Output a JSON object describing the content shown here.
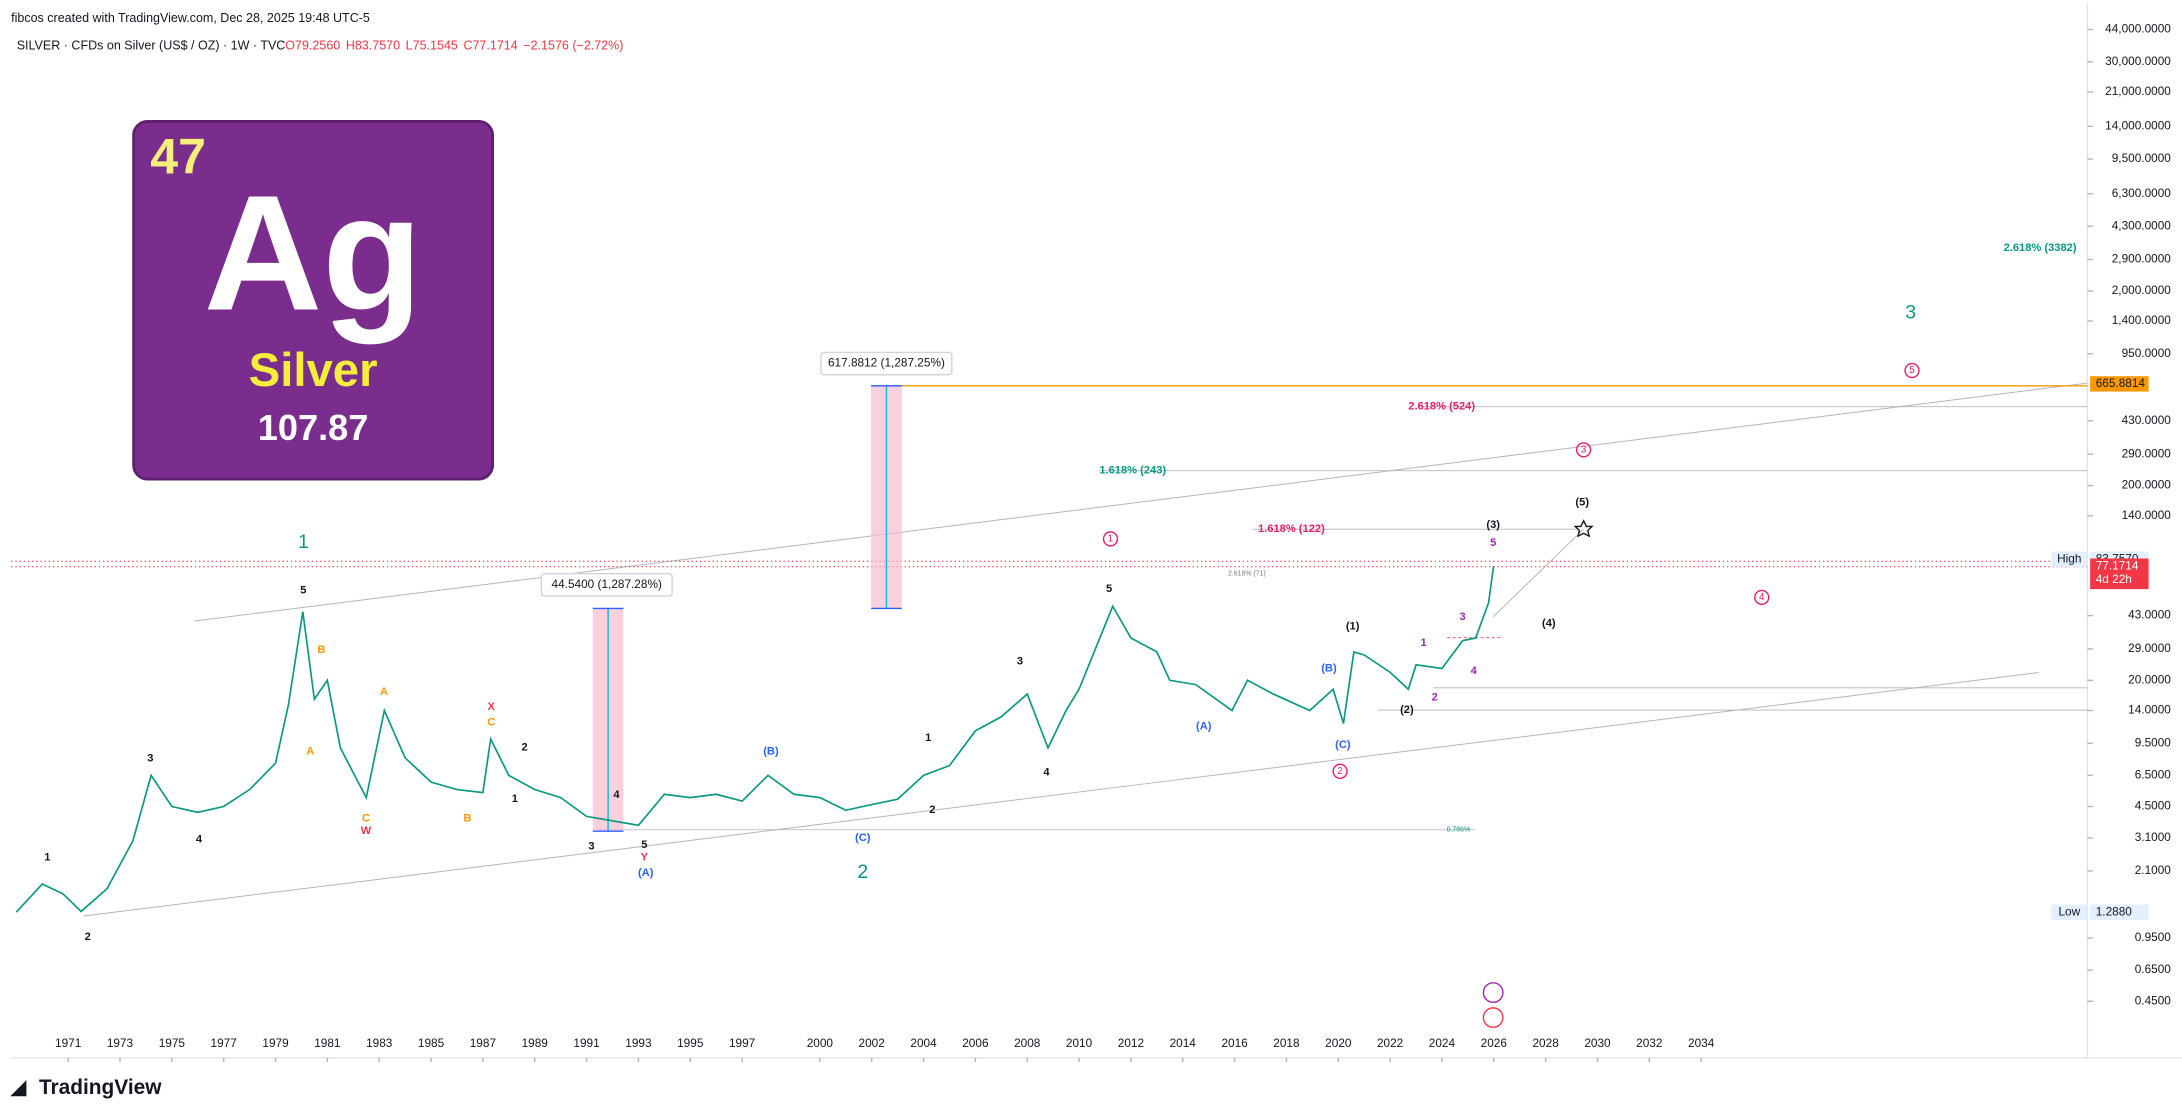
{
  "header": {
    "credit": "fibcos created with TradingView.com, Dec 28, 2025 19:48 UTC-5",
    "symbol": "SILVER · CFDs on Silver (US$ / OZ) · 1W · TVC",
    "ohlc": [
      "O79.2560",
      "H83.7570",
      "L75.1545",
      "C77.1714",
      "−2.1576 (−2.72%)"
    ]
  },
  "logo": {
    "number": "47",
    "symbol": "Ag",
    "name": "Silver",
    "mass": "107.87"
  },
  "footer": "TradingView",
  "chart_data": {
    "type": "line",
    "color": "#089981",
    "log_scale": true,
    "x": [
      1969.0,
      1970.0,
      1970.8,
      1971.5,
      1972.5,
      1973.5,
      1974.2,
      1975.0,
      1976.0,
      1977.0,
      1978.0,
      1979.0,
      1979.5,
      1980.05,
      1980.5,
      1981.0,
      1981.5,
      1982.5,
      1983.2,
      1984.0,
      1985.0,
      1986.0,
      1987.0,
      1987.3,
      1988.0,
      1989.0,
      1990.0,
      1991.0,
      1992.0,
      1993.0,
      1994.0,
      1995.0,
      1996.0,
      1997.0,
      1998.0,
      1999.0,
      2000.0,
      2001.0,
      2002.0,
      2003.0,
      2004.0,
      2005.0,
      2006.0,
      2007.0,
      2008.0,
      2008.8,
      2009.5,
      2010.0,
      2011.3,
      2012.0,
      2013.0,
      2013.5,
      2014.5,
      2015.9,
      2016.5,
      2017.5,
      2018.9,
      2019.8,
      2020.2,
      2020.6,
      2021.0,
      2022.0,
      2022.7,
      2023.0,
      2024.0,
      2024.8,
      2025.3,
      2025.8,
      2025.99
    ],
    "values": [
      1.29,
      1.8,
      1.6,
      1.3,
      1.7,
      3.0,
      6.5,
      4.5,
      4.2,
      4.5,
      5.5,
      7.5,
      15,
      45,
      16,
      20,
      9,
      5.0,
      14,
      8,
      6.0,
      5.5,
      5.3,
      10,
      6.5,
      5.5,
      5.0,
      4.0,
      3.8,
      3.6,
      5.2,
      5.0,
      5.2,
      4.8,
      6.5,
      5.2,
      5.0,
      4.3,
      4.6,
      4.9,
      6.5,
      7.3,
      11,
      13,
      17,
      9,
      14,
      18,
      48,
      33,
      28,
      20,
      19,
      14,
      20,
      17,
      14,
      18,
      12,
      28,
      27,
      22,
      18,
      24,
      23,
      32,
      33,
      50,
      77.1714
    ],
    "xlim": [
      1968.8,
      2048.9
    ],
    "xticks": [
      1971,
      1973,
      1975,
      1977,
      1979,
      1981,
      1983,
      1985,
      1987,
      1989,
      1991,
      1993,
      1995,
      1997,
      2000,
      2002,
      2004,
      2006,
      2008,
      2010,
      2012,
      2014,
      2016,
      2018,
      2020,
      2022,
      2024,
      2026,
      2028,
      2030,
      2032,
      2034
    ],
    "ylim": [
      0.23,
      51800
    ],
    "yticks": [
      {
        "value": 44000,
        "label": "44,000.0000"
      },
      {
        "value": 30000,
        "label": "30,000.0000"
      },
      {
        "value": 21000,
        "label": "21,000.0000"
      },
      {
        "value": 14000,
        "label": "14,000.0000"
      },
      {
        "value": 9500,
        "label": "9,500.0000"
      },
      {
        "value": 6300,
        "label": "6,300.0000"
      },
      {
        "value": 4300,
        "label": "4,300.0000"
      },
      {
        "value": 2900,
        "label": "2,900.0000"
      },
      {
        "value": 2000,
        "label": "2,000.0000"
      },
      {
        "value": 1400,
        "label": "1,400.0000"
      },
      {
        "value": 950,
        "label": "950.0000"
      },
      {
        "value": 430,
        "label": "430.0000"
      },
      {
        "value": 290,
        "label": "290.0000"
      },
      {
        "value": 200,
        "label": "200.0000"
      },
      {
        "value": 140,
        "label": "140.0000"
      },
      {
        "value": 43,
        "label": "43.0000"
      },
      {
        "value": 29,
        "label": "29.0000"
      },
      {
        "value": 20,
        "label": "20.0000"
      },
      {
        "value": 14,
        "label": "14.0000"
      },
      {
        "value": 9.5,
        "label": "9.5000"
      },
      {
        "value": 6.5,
        "label": "6.5000"
      },
      {
        "value": 4.5,
        "label": "4.5000"
      },
      {
        "value": 3.1,
        "label": "3.1000"
      },
      {
        "value": 2.1,
        "label": "2.1000"
      },
      {
        "value": 0.95,
        "label": "0.9500"
      },
      {
        "value": 0.65,
        "label": "0.6500"
      },
      {
        "value": 0.45,
        "label": "0.4500"
      }
    ],
    "price_labels": [
      {
        "name": "High",
        "value": 83.757,
        "label": "83.7570"
      },
      {
        "value": 77.1714,
        "label": "77.1714",
        "countdown": "4d 22h"
      },
      {
        "value": 665.8814,
        "label": "665.8814"
      },
      {
        "name": "Low",
        "value": 1.288,
        "label": "1.2880"
      }
    ],
    "measures": [
      "617.8812 (1,287.25%)",
      "44.5400 (1,287.28%)"
    ],
    "annotations": [
      "1",
      "2",
      "3",
      "1",
      "2",
      "3",
      "4",
      "5",
      "1",
      "2",
      "3",
      "4",
      "5",
      "1",
      "2",
      "3",
      "4",
      "5",
      "B",
      "A",
      "A",
      "C",
      "B",
      "C",
      "W",
      "X",
      "Y",
      "(B)",
      "(A)",
      "(C)",
      "(A)",
      "(B)",
      "(C)",
      "(1)",
      "(2)",
      "(3)",
      "(4)",
      "(5)",
      "1",
      "2",
      "3",
      "4",
      "5",
      "1",
      "2",
      "3",
      "4",
      "5",
      "2.618% (3382)",
      "2.618% (524)",
      "1.618% (243)",
      "1.618% (122)",
      "2.618% (71)",
      "0.786%"
    ]
  }
}
